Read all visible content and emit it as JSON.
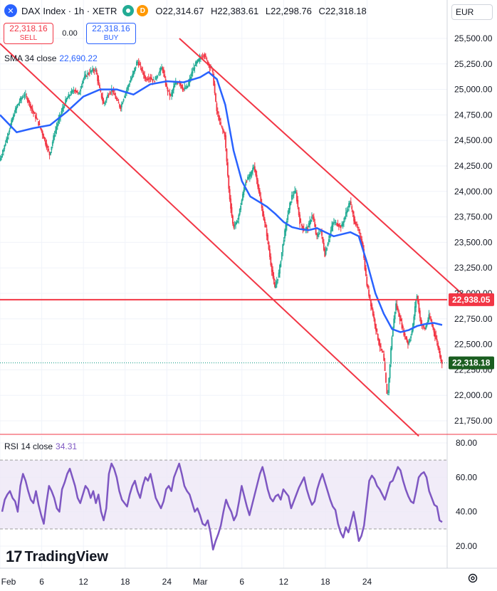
{
  "header": {
    "title": "DAX Index · 1h · XETR",
    "o_label": "O",
    "o_value": "22,314.67",
    "h_label": "H",
    "h_value": "22,383.61",
    "l_label": "L",
    "l_value": "22,298.76",
    "c_label": "C",
    "c_value": "22,318.18",
    "badge_d": "D"
  },
  "trade": {
    "sell_price": "22,318.16",
    "sell_label": "SELL",
    "spread": "0.00",
    "buy_price": "22,318.16",
    "buy_label": "BUY"
  },
  "currency": "EUR",
  "brand": "TradingView",
  "colors": {
    "bg": "#ffffff",
    "grid": "#f0f3fa",
    "up": "#22ab94",
    "down": "#f23645",
    "sma": "#2962ff",
    "channel": "#f23645",
    "rsi": "#7e57c2",
    "rsi_band": "#ede7f6"
  },
  "chart_data": [
    {
      "type": "candlestick",
      "title": "DAX Index · 1h · XETR",
      "ylim": [
        21600,
        25600
      ],
      "y_ticks": [
        21750,
        22000,
        22250,
        22500,
        22750,
        23000,
        23250,
        23500,
        23750,
        24000,
        24250,
        24500,
        24750,
        25000,
        25250,
        25500
      ],
      "y_tick_labels": [
        "21,750.00",
        "22,000.00",
        "22,250.00",
        "22,500.00",
        "22,750.00",
        "23,000.00",
        "23,250.00",
        "23,500.00",
        "23,750.00",
        "24,000.00",
        "24,250.00",
        "24,500.00",
        "24,750.00",
        "25,000.00",
        "25,250.00",
        "25,500.00"
      ],
      "x_tick_labels": [
        "Feb",
        "6",
        "12",
        "18",
        "24",
        "Mar",
        "6",
        "12",
        "18",
        "24"
      ],
      "x_tick_pos": [
        0,
        5,
        10,
        15,
        20,
        24,
        29,
        34,
        39,
        44
      ],
      "x_range": [
        0,
        52
      ],
      "price_path": [
        [
          0,
          24300
        ],
        [
          0.5,
          24420
        ],
        [
          1,
          24560
        ],
        [
          1.5,
          24700
        ],
        [
          2,
          24820
        ],
        [
          2.5,
          24900
        ],
        [
          3,
          24950
        ],
        [
          3.5,
          24880
        ],
        [
          4,
          24780
        ],
        [
          4.5,
          24700
        ],
        [
          5,
          24600
        ],
        [
          5.5,
          24480
        ],
        [
          6,
          24360
        ],
        [
          6.5,
          24540
        ],
        [
          7,
          24680
        ],
        [
          7.5,
          24800
        ],
        [
          8,
          24900
        ],
        [
          8.5,
          24960
        ],
        [
          9,
          25000
        ],
        [
          9.5,
          24950
        ],
        [
          10,
          25100
        ],
        [
          10.5,
          25150
        ],
        [
          11,
          25180
        ],
        [
          11.5,
          25200
        ],
        [
          12,
          25000
        ],
        [
          12.5,
          24850
        ],
        [
          13,
          24950
        ],
        [
          13.5,
          25000
        ],
        [
          14,
          24900
        ],
        [
          14.5,
          24820
        ],
        [
          15,
          24950
        ],
        [
          15.5,
          25050
        ],
        [
          16,
          25150
        ],
        [
          16.5,
          25280
        ],
        [
          17,
          25200
        ],
        [
          17.5,
          25100
        ],
        [
          18,
          25120
        ],
        [
          18.5,
          25080
        ],
        [
          19,
          25150
        ],
        [
          19.5,
          25220
        ],
        [
          20,
          25020
        ],
        [
          20.5,
          24930
        ],
        [
          21,
          25050
        ],
        [
          21.5,
          25080
        ],
        [
          22,
          25000
        ],
        [
          22.5,
          25020
        ],
        [
          23,
          25150
        ],
        [
          23.5,
          25250
        ],
        [
          24,
          25300
        ],
        [
          24.5,
          25350
        ],
        [
          25,
          25250
        ],
        [
          25.5,
          25200
        ],
        [
          26,
          24800
        ],
        [
          26.5,
          24650
        ],
        [
          27,
          24550
        ],
        [
          27.5,
          24000
        ],
        [
          28,
          23650
        ],
        [
          28.5,
          23700
        ],
        [
          29,
          23900
        ],
        [
          29.5,
          24100
        ],
        [
          30,
          24150
        ],
        [
          30.5,
          24250
        ],
        [
          31,
          24050
        ],
        [
          31.5,
          23800
        ],
        [
          32,
          23600
        ],
        [
          32.5,
          23300
        ],
        [
          33,
          23050
        ],
        [
          33.5,
          23200
        ],
        [
          34,
          23500
        ],
        [
          34.5,
          23750
        ],
        [
          35,
          23950
        ],
        [
          35.5,
          24000
        ],
        [
          36,
          23700
        ],
        [
          36.5,
          23620
        ],
        [
          37,
          23650
        ],
        [
          37.5,
          23780
        ],
        [
          38,
          23550
        ],
        [
          38.5,
          23620
        ],
        [
          39,
          23380
        ],
        [
          39.5,
          23550
        ],
        [
          40,
          23700
        ],
        [
          40.5,
          23680
        ],
        [
          41,
          23650
        ],
        [
          41.5,
          23780
        ],
        [
          42,
          23900
        ],
        [
          42.5,
          23720
        ],
        [
          43,
          23620
        ],
        [
          43.5,
          23480
        ],
        [
          44,
          23100
        ],
        [
          44.5,
          22900
        ],
        [
          45,
          22700
        ],
        [
          45.5,
          22500
        ],
        [
          46,
          22400
        ],
        [
          46.5,
          21950
        ],
        [
          47,
          22550
        ],
        [
          47.5,
          22900
        ],
        [
          48,
          22750
        ],
        [
          48.5,
          22600
        ],
        [
          49,
          22500
        ],
        [
          49.5,
          22650
        ],
        [
          50,
          23000
        ],
        [
          50.5,
          22700
        ],
        [
          51,
          22650
        ],
        [
          51.5,
          22780
        ],
        [
          52,
          22650
        ],
        [
          52.5,
          22500
        ],
        [
          53,
          22318
        ]
      ],
      "sma_value": "22,690.22",
      "sma_path": [
        [
          0,
          24750
        ],
        [
          2,
          24580
        ],
        [
          4,
          24620
        ],
        [
          6,
          24650
        ],
        [
          8,
          24780
        ],
        [
          10,
          24930
        ],
        [
          12,
          25000
        ],
        [
          14,
          25000
        ],
        [
          16,
          24950
        ],
        [
          18,
          25050
        ],
        [
          20,
          25080
        ],
        [
          22,
          25070
        ],
        [
          24,
          25120
        ],
        [
          25,
          25170
        ],
        [
          26,
          25100
        ],
        [
          27,
          24850
        ],
        [
          28,
          24400
        ],
        [
          29,
          24100
        ],
        [
          30,
          23950
        ],
        [
          31,
          23900
        ],
        [
          32,
          23850
        ],
        [
          33,
          23780
        ],
        [
          34,
          23700
        ],
        [
          35,
          23650
        ],
        [
          36,
          23630
        ],
        [
          37,
          23620
        ],
        [
          38,
          23640
        ],
        [
          39,
          23600
        ],
        [
          40,
          23560
        ],
        [
          41,
          23580
        ],
        [
          42,
          23600
        ],
        [
          43,
          23560
        ],
        [
          44,
          23300
        ],
        [
          45,
          23000
        ],
        [
          46,
          22800
        ],
        [
          47,
          22650
        ],
        [
          48,
          22620
        ],
        [
          49,
          22640
        ],
        [
          50,
          22680
        ],
        [
          51,
          22700
        ],
        [
          52,
          22710
        ],
        [
          53,
          22690
        ]
      ],
      "horizontal_line": 22938.05,
      "horizontal_line_label": "22,938.05",
      "last_price": 22318.18,
      "last_price_label": "22,318.18",
      "channel_upper": [
        [
          21.5,
          25500
        ],
        [
          56,
          22950
        ]
      ],
      "channel_lower": [
        [
          0,
          25450
        ],
        [
          50.2,
          21600
        ]
      ]
    },
    {
      "type": "line",
      "title": "RSI 14 close",
      "value": "34.31",
      "ylim": [
        12,
        82
      ],
      "y_ticks": [
        20,
        40,
        60,
        80
      ],
      "y_tick_labels": [
        "20.00",
        "40.00",
        "60.00",
        "80.00"
      ],
      "band": [
        30,
        70
      ],
      "values": [
        40,
        47,
        50,
        52,
        48,
        46,
        40,
        55,
        62,
        58,
        52,
        47,
        45,
        52,
        44,
        38,
        33,
        45,
        55,
        52,
        48,
        42,
        40,
        53,
        57,
        62,
        65,
        60,
        55,
        48,
        45,
        50,
        55,
        53,
        48,
        52,
        45,
        50,
        40,
        35,
        42,
        62,
        68,
        65,
        60,
        52,
        47,
        45,
        43,
        50,
        55,
        58,
        52,
        48,
        55,
        60,
        58,
        62,
        55,
        48,
        45,
        42,
        46,
        53,
        55,
        52,
        60,
        64,
        68,
        62,
        55,
        52,
        50,
        45,
        40,
        42,
        38,
        33,
        32,
        35,
        28,
        18,
        23,
        27,
        32,
        40,
        47,
        43,
        40,
        35,
        38,
        46,
        55,
        49,
        43,
        38,
        44,
        50,
        56,
        62,
        66,
        60,
        53,
        48,
        46,
        49,
        50,
        47,
        53,
        51,
        49,
        42,
        46,
        50,
        54,
        57,
        60,
        53,
        48,
        44,
        46,
        53,
        58,
        62,
        57,
        52,
        47,
        43,
        41,
        33,
        28,
        25,
        31,
        28,
        34,
        40,
        32,
        23,
        26,
        32,
        45,
        58,
        61,
        59,
        55,
        53,
        50,
        47,
        52,
        57,
        58,
        62,
        66,
        64,
        58,
        53,
        49,
        46,
        45,
        52,
        60,
        62,
        63,
        60,
        52,
        48,
        44,
        43,
        35,
        34
      ]
    }
  ]
}
